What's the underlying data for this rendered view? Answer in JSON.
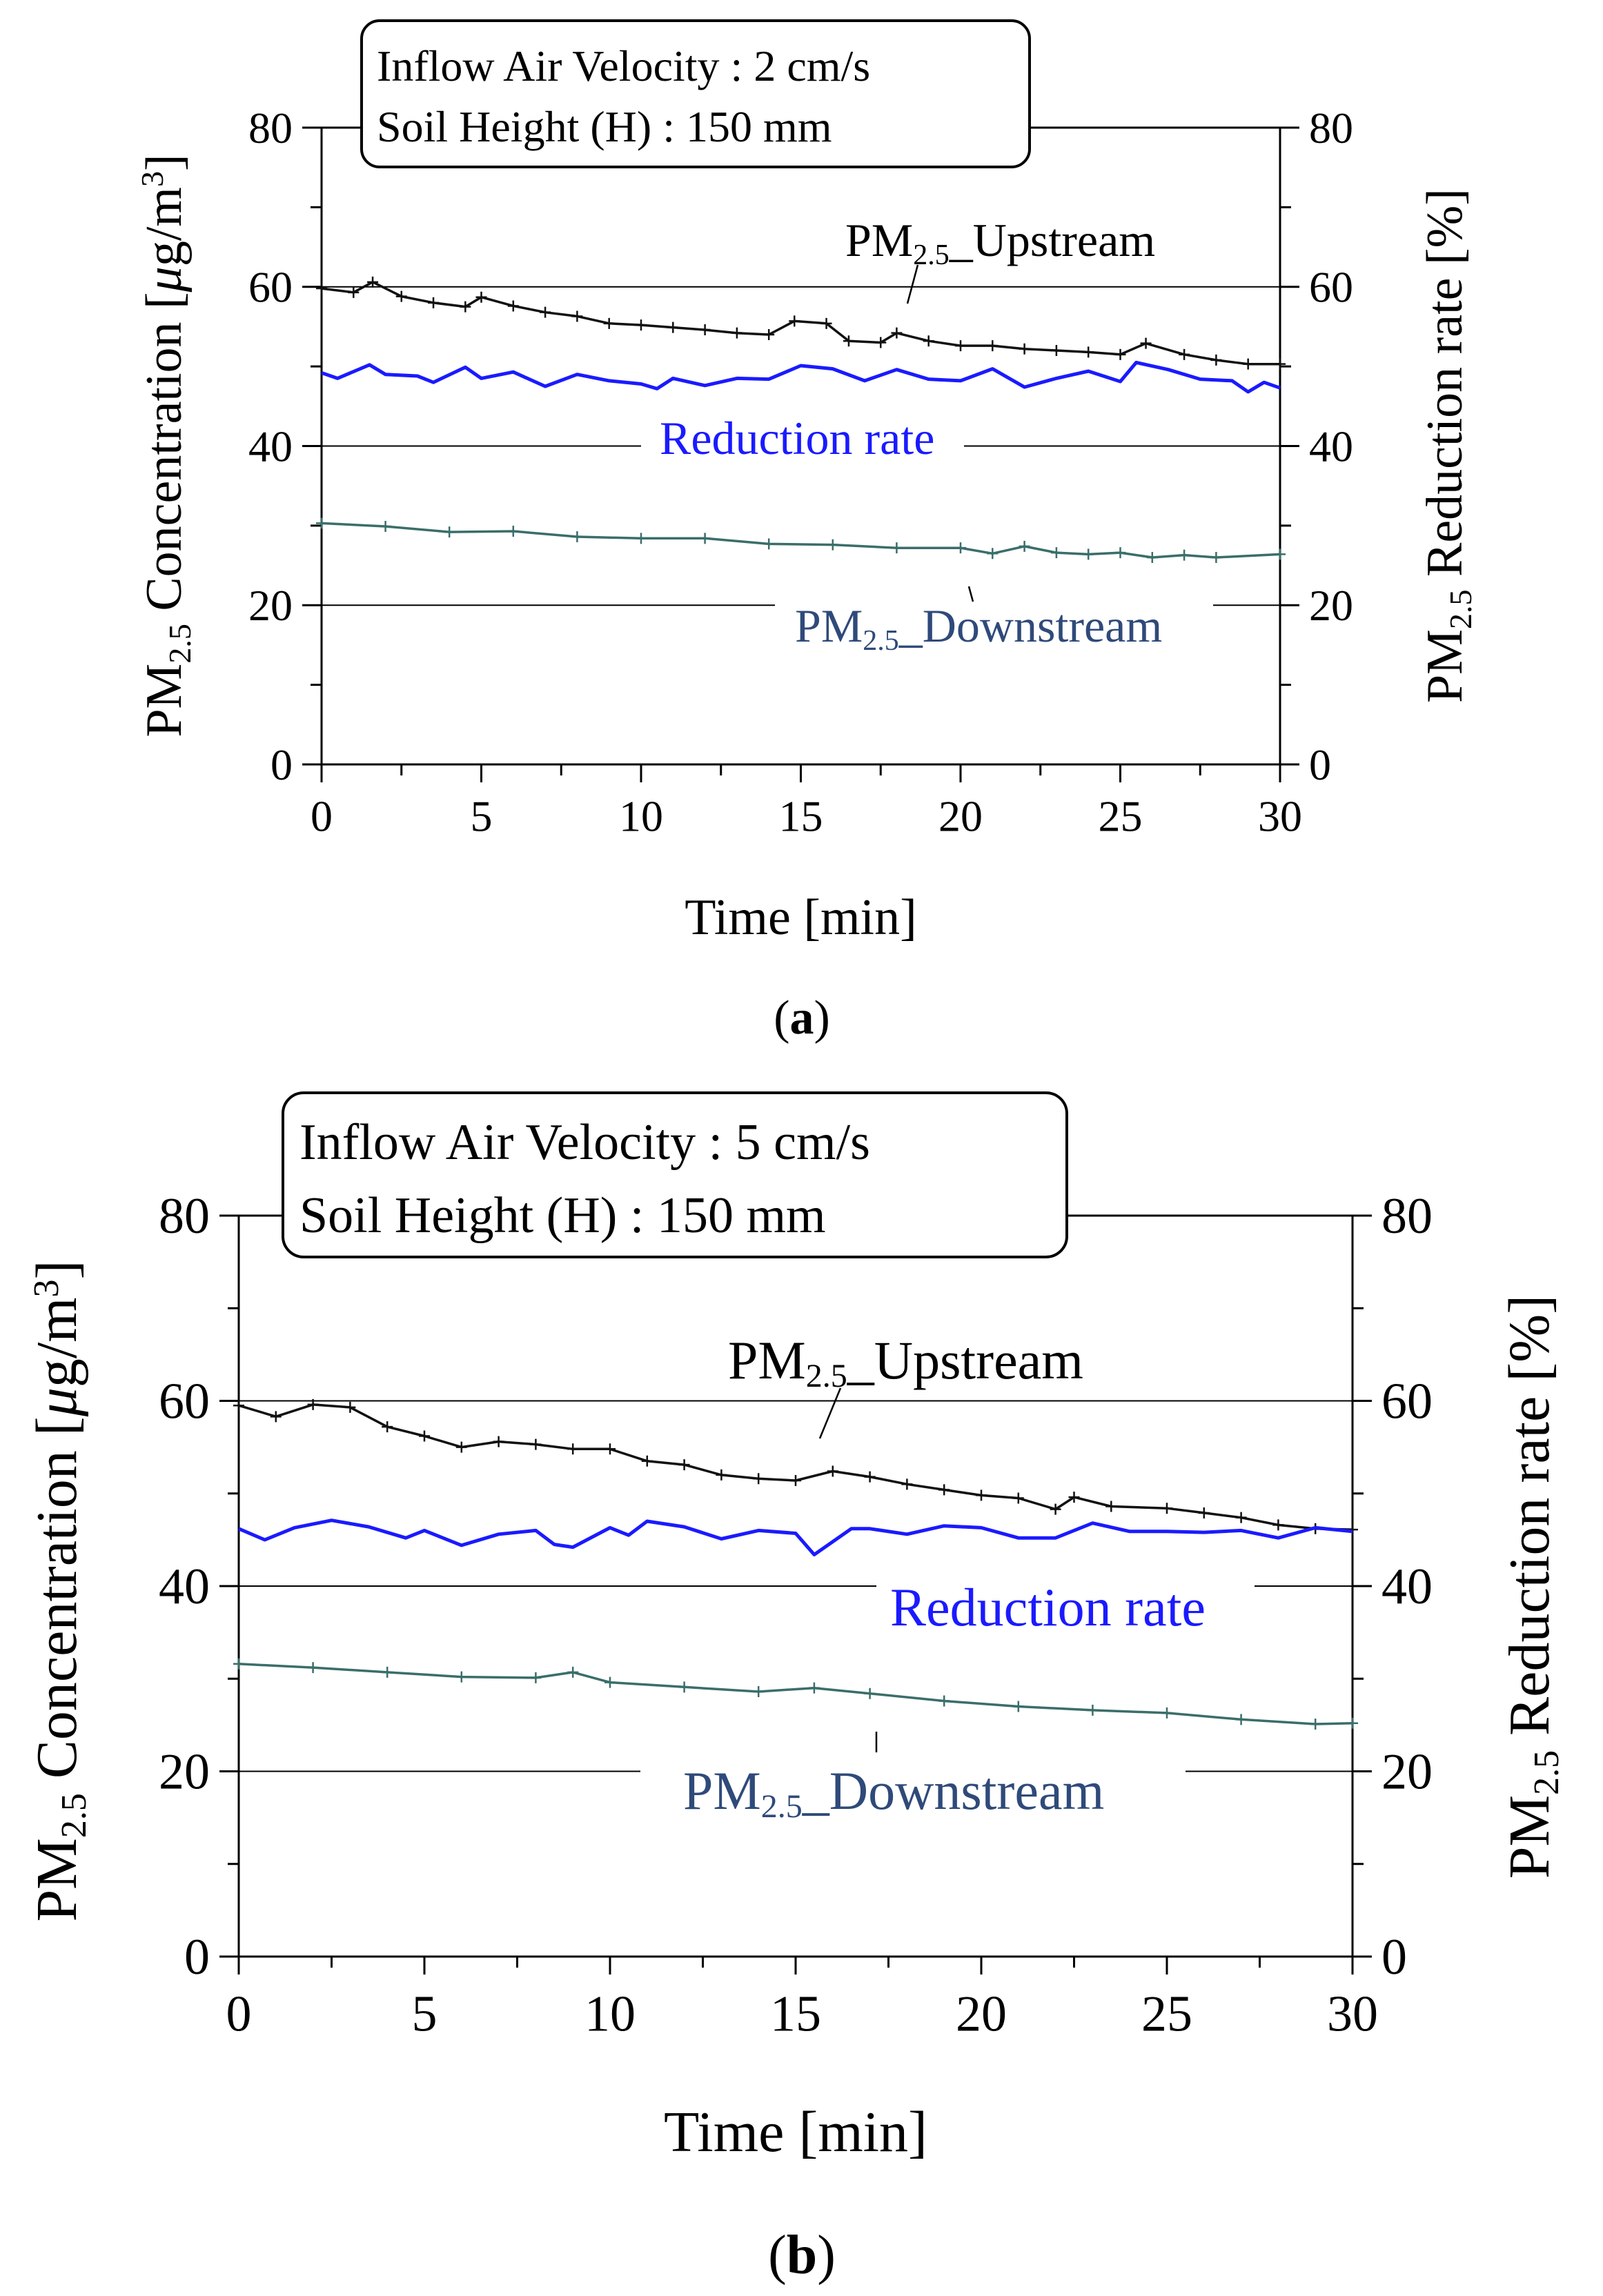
{
  "colors": {
    "upstream": "#111111",
    "downstream": "#3a6e6a",
    "reduction": "#1a1aff",
    "downstream_label": "#2f4a7a",
    "gridline": "#000000"
  },
  "chart_data": [
    {
      "id": "a",
      "type": "line",
      "caption": "a",
      "info_line1": "Inflow Air Velocity : 2 cm/s",
      "info_line2": "Soil Height (H) : 150 mm",
      "xlabel": "Time [min]",
      "ylabel_left": {
        "pre": "PM",
        "sub": "2.5",
        "mid": " Concentration [",
        "mu": "μ",
        "unit": "g/m",
        "sup": "3",
        "post": "]"
      },
      "ylabel_right": {
        "pre": "PM",
        "sub": "2.5",
        "post": " Reduction rate [%]"
      },
      "xlim": [
        0,
        30
      ],
      "ylim": [
        0,
        80
      ],
      "x_ticks": [
        0,
        5,
        10,
        15,
        20,
        25,
        30
      ],
      "y_ticks": [
        0,
        20,
        40,
        60,
        80
      ],
      "gridlines_y": [
        20,
        40,
        60
      ],
      "series": [
        {
          "name": "upstream",
          "label_pre": "PM",
          "label_sub": "2.5",
          "label_post": "_Upstream",
          "marker": "plus",
          "points": [
            [
              0,
              59.8
            ],
            [
              1,
              59.3
            ],
            [
              1.6,
              60.6
            ],
            [
              2.5,
              58.8
            ],
            [
              3.5,
              58.0
            ],
            [
              4.5,
              57.5
            ],
            [
              5,
              58.7
            ],
            [
              6,
              57.6
            ],
            [
              7,
              56.8
            ],
            [
              8,
              56.3
            ],
            [
              9,
              55.4
            ],
            [
              10,
              55.2
            ],
            [
              11,
              54.9
            ],
            [
              12,
              54.6
            ],
            [
              13,
              54.2
            ],
            [
              14,
              54.0
            ],
            [
              14.8,
              55.7
            ],
            [
              15.8,
              55.4
            ],
            [
              16.5,
              53.2
            ],
            [
              17.5,
              53.0
            ],
            [
              18,
              54.2
            ],
            [
              19,
              53.2
            ],
            [
              20,
              52.6
            ],
            [
              21,
              52.6
            ],
            [
              22,
              52.2
            ],
            [
              23,
              52.0
            ],
            [
              24,
              51.8
            ],
            [
              25,
              51.5
            ],
            [
              25.8,
              52.9
            ],
            [
              27,
              51.5
            ],
            [
              28,
              50.8
            ],
            [
              29,
              50.3
            ],
            [
              30,
              50.3
            ]
          ]
        },
        {
          "name": "reduction",
          "label": "Reduction rate",
          "marker": "none",
          "points": [
            [
              0,
              49.2
            ],
            [
              0.5,
              48.5
            ],
            [
              1.5,
              50.2
            ],
            [
              2,
              49.0
            ],
            [
              3,
              48.8
            ],
            [
              3.5,
              48.0
            ],
            [
              4.5,
              49.9
            ],
            [
              5,
              48.5
            ],
            [
              6,
              49.3
            ],
            [
              7,
              47.5
            ],
            [
              8,
              49.0
            ],
            [
              9,
              48.2
            ],
            [
              10,
              47.8
            ],
            [
              10.5,
              47.2
            ],
            [
              11,
              48.5
            ],
            [
              12,
              47.6
            ],
            [
              13,
              48.5
            ],
            [
              14,
              48.4
            ],
            [
              15,
              50.1
            ],
            [
              16,
              49.7
            ],
            [
              17,
              48.2
            ],
            [
              18,
              49.6
            ],
            [
              19,
              48.4
            ],
            [
              20,
              48.2
            ],
            [
              21,
              49.7
            ],
            [
              22,
              47.4
            ],
            [
              23,
              48.5
            ],
            [
              24,
              49.4
            ],
            [
              25,
              48.1
            ],
            [
              25.5,
              50.5
            ],
            [
              26.5,
              49.6
            ],
            [
              27.5,
              48.4
            ],
            [
              28.5,
              48.2
            ],
            [
              29,
              46.8
            ],
            [
              29.5,
              48.0
            ],
            [
              30,
              47.3
            ]
          ]
        },
        {
          "name": "downstream",
          "label_pre": "PM",
          "label_sub": "2.5",
          "label_post": "_Downstream",
          "marker": "plus",
          "points": [
            [
              0,
              30.3
            ],
            [
              2,
              29.9
            ],
            [
              4,
              29.2
            ],
            [
              6,
              29.3
            ],
            [
              8,
              28.6
            ],
            [
              10,
              28.4
            ],
            [
              12,
              28.4
            ],
            [
              14,
              27.7
            ],
            [
              16,
              27.6
            ],
            [
              18,
              27.2
            ],
            [
              20,
              27.2
            ],
            [
              21,
              26.5
            ],
            [
              22,
              27.4
            ],
            [
              23,
              26.6
            ],
            [
              24,
              26.4
            ],
            [
              25,
              26.6
            ],
            [
              26,
              26.0
            ],
            [
              27,
              26.3
            ],
            [
              28,
              26.0
            ],
            [
              30,
              26.4
            ]
          ]
        }
      ]
    },
    {
      "id": "b",
      "type": "line",
      "caption": "b",
      "info_line1": "Inflow Air Velocity : 5 cm/s",
      "info_line2": "Soil Height (H) : 150 mm",
      "xlabel": "Time [min]",
      "ylabel_left": {
        "pre": "PM",
        "sub": "2.5",
        "mid": " Concentration [",
        "mu": "μ",
        "unit": "g/m",
        "sup": "3",
        "post": "]"
      },
      "ylabel_right": {
        "pre": "PM",
        "sub": "2.5",
        "post": " Reduction rate [%]"
      },
      "xlim": [
        0,
        30
      ],
      "ylim": [
        0,
        80
      ],
      "x_ticks": [
        0,
        5,
        10,
        15,
        20,
        25,
        30
      ],
      "y_ticks": [
        0,
        20,
        40,
        60,
        80
      ],
      "gridlines_y": [
        20,
        40,
        60
      ],
      "series": [
        {
          "name": "upstream",
          "label_pre": "PM",
          "label_sub": "2.5",
          "label_post": "_Upstream",
          "marker": "plus",
          "points": [
            [
              0,
              59.5
            ],
            [
              1,
              58.3
            ],
            [
              2,
              59.6
            ],
            [
              3,
              59.3
            ],
            [
              4,
              57.2
            ],
            [
              5,
              56.2
            ],
            [
              6,
              55.0
            ],
            [
              7,
              55.6
            ],
            [
              8,
              55.3
            ],
            [
              9,
              54.8
            ],
            [
              10,
              54.8
            ],
            [
              11,
              53.5
            ],
            [
              12,
              53.1
            ],
            [
              13,
              52.0
            ],
            [
              14,
              51.6
            ],
            [
              15,
              51.4
            ],
            [
              16,
              52.4
            ],
            [
              17,
              51.8
            ],
            [
              18,
              51.0
            ],
            [
              19,
              50.4
            ],
            [
              20,
              49.8
            ],
            [
              21,
              49.5
            ],
            [
              22,
              48.3
            ],
            [
              22.5,
              49.6
            ],
            [
              23.5,
              48.6
            ],
            [
              25,
              48.4
            ],
            [
              26,
              47.9
            ],
            [
              27,
              47.4
            ],
            [
              28,
              46.6
            ],
            [
              29,
              46.2
            ],
            [
              30,
              46.1
            ]
          ]
        },
        {
          "name": "reduction",
          "label": "Reduction rate",
          "marker": "none",
          "points": [
            [
              0,
              46.2
            ],
            [
              0.7,
              45.0
            ],
            [
              1.5,
              46.3
            ],
            [
              2.5,
              47.1
            ],
            [
              3.5,
              46.4
            ],
            [
              4.5,
              45.2
            ],
            [
              5,
              46.0
            ],
            [
              6,
              44.4
            ],
            [
              7,
              45.6
            ],
            [
              8,
              46.0
            ],
            [
              8.5,
              44.5
            ],
            [
              9,
              44.2
            ],
            [
              10,
              46.3
            ],
            [
              10.5,
              45.5
            ],
            [
              11,
              47.0
            ],
            [
              12,
              46.4
            ],
            [
              13,
              45.1
            ],
            [
              14,
              46.0
            ],
            [
              15,
              45.7
            ],
            [
              15.5,
              43.4
            ],
            [
              16.5,
              46.2
            ],
            [
              17,
              46.2
            ],
            [
              18,
              45.6
            ],
            [
              19,
              46.5
            ],
            [
              20,
              46.3
            ],
            [
              21,
              45.2
            ],
            [
              22,
              45.2
            ],
            [
              23,
              46.8
            ],
            [
              24,
              45.9
            ],
            [
              25,
              45.9
            ],
            [
              26,
              45.8
            ],
            [
              27,
              46.0
            ],
            [
              28,
              45.2
            ],
            [
              29,
              46.3
            ],
            [
              30,
              45.9
            ]
          ]
        },
        {
          "name": "downstream",
          "label_pre": "PM",
          "label_sub": "2.5",
          "label_post": "_Downstream",
          "marker": "plus",
          "points": [
            [
              0,
              31.6
            ],
            [
              2,
              31.2
            ],
            [
              4,
              30.7
            ],
            [
              6,
              30.2
            ],
            [
              8,
              30.1
            ],
            [
              9,
              30.7
            ],
            [
              10,
              29.6
            ],
            [
              12,
              29.1
            ],
            [
              14,
              28.6
            ],
            [
              15.5,
              29.0
            ],
            [
              17,
              28.4
            ],
            [
              19,
              27.6
            ],
            [
              21,
              27.0
            ],
            [
              23,
              26.6
            ],
            [
              25,
              26.3
            ],
            [
              27,
              25.6
            ],
            [
              29,
              25.1
            ],
            [
              30,
              25.2
            ]
          ]
        }
      ]
    }
  ]
}
